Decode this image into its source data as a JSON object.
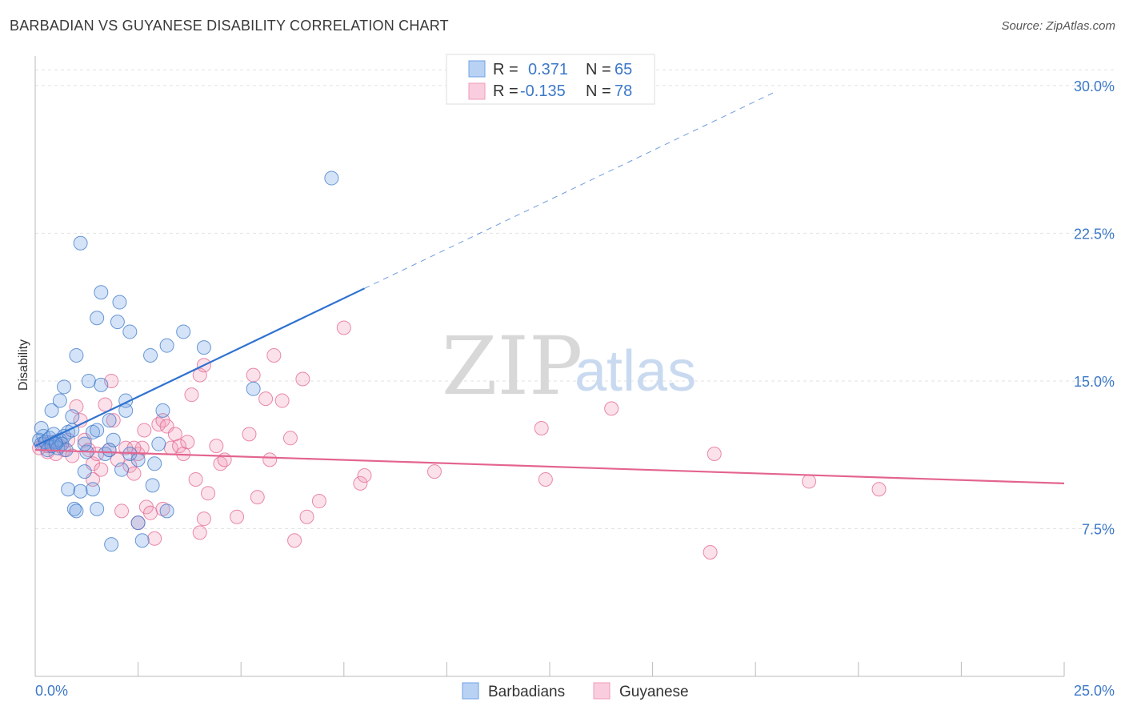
{
  "title": "BARBADIAN VS GUYANESE DISABILITY CORRELATION CHART",
  "source": "Source: ZipAtlas.com",
  "watermark": {
    "zip": "ZIP",
    "atlas": "atlas"
  },
  "legend": {
    "rows": [
      {
        "r_label": "R =",
        "r_value": "0.371",
        "n_label": "N =",
        "n_value": "65",
        "color": "#6fa3e6"
      },
      {
        "r_label": "R =",
        "r_value": "-0.135",
        "n_label": "N =",
        "n_value": "78",
        "color": "#f19abb"
      }
    ]
  },
  "bottom_legend": {
    "series1": "Barbadians",
    "series2": "Guyanese"
  },
  "chart_data": {
    "type": "scatter",
    "title": "BARBADIAN VS GUYANESE DISABILITY CORRELATION CHART",
    "xlabel": "",
    "ylabel": "Disability",
    "xlim": [
      0,
      25
    ],
    "ylim": [
      0,
      31.5
    ],
    "x_tick_labels": [
      "0.0%",
      "25.0%"
    ],
    "y_ticks": [
      7.5,
      15.0,
      22.5,
      30.0
    ],
    "y_tick_labels": [
      "7.5%",
      "15.0%",
      "22.5%",
      "30.0%"
    ],
    "grid": true,
    "legend_position": "top-center",
    "series": [
      {
        "name": "Barbadians",
        "color": "#6fa3e6",
        "stroke": "#3c78c8",
        "R": 0.371,
        "N": 65,
        "trend": {
          "x0": 0.0,
          "y0": 11.7,
          "x1": 8.0,
          "y1": 19.7,
          "dash_to_x": 18.0
        },
        "points": [
          [
            0.1,
            12.0
          ],
          [
            0.15,
            11.8
          ],
          [
            0.2,
            12.2
          ],
          [
            0.25,
            11.9
          ],
          [
            0.3,
            11.5
          ],
          [
            0.35,
            12.1
          ],
          [
            0.4,
            11.7
          ],
          [
            0.45,
            12.3
          ],
          [
            0.5,
            11.9
          ],
          [
            0.55,
            11.6
          ],
          [
            0.6,
            12.0
          ],
          [
            0.65,
            11.8
          ],
          [
            0.7,
            12.2
          ],
          [
            0.75,
            11.5
          ],
          [
            0.8,
            12.4
          ],
          [
            0.15,
            12.6
          ],
          [
            0.4,
            13.5
          ],
          [
            0.6,
            14.0
          ],
          [
            0.7,
            14.7
          ],
          [
            0.9,
            13.2
          ],
          [
            0.9,
            12.5
          ],
          [
            1.0,
            16.3
          ],
          [
            1.1,
            22.0
          ],
          [
            1.2,
            10.4
          ],
          [
            1.25,
            11.4
          ],
          [
            1.3,
            15.0
          ],
          [
            1.4,
            12.4
          ],
          [
            1.5,
            18.2
          ],
          [
            1.6,
            14.8
          ],
          [
            1.6,
            19.5
          ],
          [
            1.7,
            11.3
          ],
          [
            1.8,
            11.5
          ],
          [
            1.8,
            13.0
          ],
          [
            1.9,
            12.0
          ],
          [
            2.0,
            18.0
          ],
          [
            2.05,
            19.0
          ],
          [
            2.1,
            10.5
          ],
          [
            2.2,
            13.5
          ],
          [
            2.2,
            14.0
          ],
          [
            2.3,
            17.5
          ],
          [
            2.3,
            11.3
          ],
          [
            2.5,
            11.0
          ],
          [
            2.5,
            7.8
          ],
          [
            2.6,
            6.9
          ],
          [
            2.8,
            16.3
          ],
          [
            2.85,
            9.7
          ],
          [
            2.9,
            10.8
          ],
          [
            3.0,
            11.8
          ],
          [
            3.1,
            13.5
          ],
          [
            3.2,
            8.4
          ],
          [
            3.2,
            16.8
          ],
          [
            3.6,
            17.5
          ],
          [
            4.1,
            16.7
          ],
          [
            0.8,
            9.5
          ],
          [
            1.1,
            9.4
          ],
          [
            0.95,
            8.5
          ],
          [
            1.0,
            8.4
          ],
          [
            1.4,
            9.5
          ],
          [
            1.5,
            8.5
          ],
          [
            1.5,
            12.5
          ],
          [
            1.85,
            6.7
          ],
          [
            1.2,
            11.8
          ],
          [
            0.5,
            11.8
          ],
          [
            5.3,
            14.6
          ],
          [
            7.2,
            25.3
          ]
        ]
      },
      {
        "name": "Guyanese",
        "color": "#f19abb",
        "stroke": "#e3648f",
        "R": -0.135,
        "N": 78,
        "trend": {
          "x0": 0.0,
          "y0": 11.5,
          "x1": 25.0,
          "y1": 9.8
        },
        "points": [
          [
            0.1,
            11.6
          ],
          [
            0.2,
            11.8
          ],
          [
            0.3,
            11.4
          ],
          [
            0.4,
            11.9
          ],
          [
            0.5,
            11.3
          ],
          [
            0.6,
            11.7
          ],
          [
            0.7,
            11.5
          ],
          [
            0.8,
            12.0
          ],
          [
            0.9,
            11.2
          ],
          [
            1.0,
            13.7
          ],
          [
            1.1,
            13.0
          ],
          [
            1.2,
            12.0
          ],
          [
            1.3,
            11.5
          ],
          [
            1.4,
            10.8
          ],
          [
            1.5,
            11.3
          ],
          [
            1.6,
            10.5
          ],
          [
            1.7,
            13.8
          ],
          [
            1.8,
            11.5
          ],
          [
            1.85,
            15.0
          ],
          [
            1.9,
            13.0
          ],
          [
            2.0,
            11.0
          ],
          [
            2.1,
            8.4
          ],
          [
            2.2,
            11.6
          ],
          [
            2.3,
            10.7
          ],
          [
            2.4,
            10.3
          ],
          [
            2.5,
            11.3
          ],
          [
            2.5,
            7.8
          ],
          [
            2.6,
            11.6
          ],
          [
            2.65,
            12.5
          ],
          [
            2.7,
            8.6
          ],
          [
            2.8,
            8.3
          ],
          [
            2.9,
            7.0
          ],
          [
            3.0,
            12.8
          ],
          [
            3.1,
            13.0
          ],
          [
            3.2,
            12.7
          ],
          [
            3.3,
            11.6
          ],
          [
            3.4,
            12.3
          ],
          [
            3.5,
            11.7
          ],
          [
            3.6,
            11.3
          ],
          [
            3.7,
            11.9
          ],
          [
            3.8,
            14.3
          ],
          [
            3.9,
            10.0
          ],
          [
            4.0,
            15.3
          ],
          [
            4.1,
            15.8
          ],
          [
            4.2,
            9.3
          ],
          [
            4.4,
            11.7
          ],
          [
            4.5,
            10.8
          ],
          [
            4.6,
            11.0
          ],
          [
            4.9,
            8.1
          ],
          [
            5.2,
            12.3
          ],
          [
            5.3,
            15.3
          ],
          [
            5.4,
            9.1
          ],
          [
            5.6,
            14.1
          ],
          [
            5.7,
            11.0
          ],
          [
            5.8,
            16.3
          ],
          [
            6.0,
            14.0
          ],
          [
            6.2,
            12.1
          ],
          [
            6.5,
            15.1
          ],
          [
            6.6,
            8.1
          ],
          [
            6.9,
            8.9
          ],
          [
            7.5,
            17.7
          ],
          [
            7.9,
            9.8
          ],
          [
            8.0,
            10.2
          ],
          [
            9.7,
            10.4
          ],
          [
            12.3,
            12.6
          ],
          [
            12.4,
            10.0
          ],
          [
            14.0,
            13.6
          ],
          [
            16.5,
            11.3
          ],
          [
            18.8,
            9.9
          ],
          [
            20.5,
            9.5
          ],
          [
            16.4,
            6.3
          ],
          [
            4.0,
            7.3
          ],
          [
            6.3,
            6.9
          ],
          [
            4.1,
            8.0
          ],
          [
            3.1,
            8.5
          ],
          [
            2.4,
            11.6
          ],
          [
            1.4,
            10.0
          ],
          [
            0.3,
            11.7
          ]
        ]
      }
    ]
  }
}
